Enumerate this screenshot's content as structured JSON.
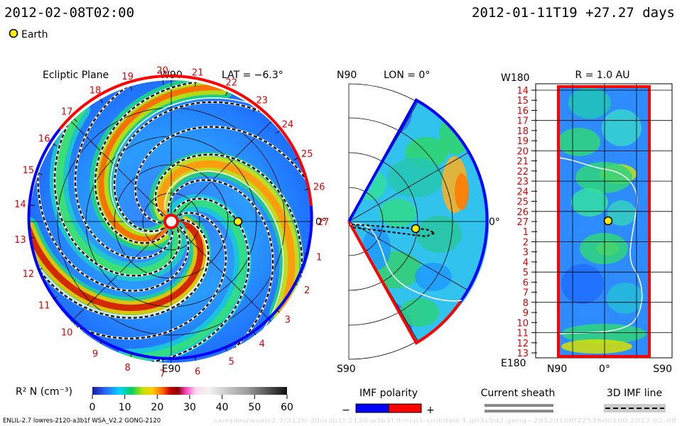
{
  "header": {
    "date_left": "2012-02-08T02:00",
    "date_right": "2012-01-11T19  +27.27 days",
    "earth_label": "Earth"
  },
  "colors": {
    "earth": "#ffee00",
    "polarity_negative": "#0000ff",
    "polarity_positive": "#ff0000",
    "current_sheath": "#8a8a8a",
    "imf_line": "#000000",
    "sun": "#ff0000",
    "tick_labels": "#dd0000"
  },
  "chart_data": [
    {
      "type": "heatmap",
      "title": "Ecliptic Plane",
      "top_label": "W90",
      "bottom_label": "E90",
      "right_label": "0°",
      "lat_label": "LAT = −6.3°",
      "carrington_ticks": [
        "1",
        "2",
        "3",
        "4",
        "5",
        "6",
        "7",
        "8",
        "9",
        "10",
        "11",
        "12",
        "13",
        "14",
        "15",
        "16",
        "17",
        "18",
        "19",
        "20",
        "21",
        "22",
        "23",
        "24",
        "25",
        "26",
        "27"
      ],
      "earth_present": true
    },
    {
      "type": "heatmap",
      "title": "LON = 0°",
      "top_label": "N90",
      "bottom_label": "S90",
      "right_label": "0°",
      "earth_present": true
    },
    {
      "type": "heatmap",
      "title": "R = 1.0 AU",
      "top_left_label": "W180",
      "bottom_left_label": "E180",
      "x_tick_labels": [
        "N90",
        "0°",
        "S90"
      ],
      "y_tick_labels": [
        "14",
        "15",
        "16",
        "17",
        "18",
        "19",
        "20",
        "21",
        "22",
        "23",
        "24",
        "25",
        "26",
        "27",
        "1",
        "2",
        "3",
        "4",
        "5",
        "6",
        "7",
        "8",
        "9",
        "10",
        "11",
        "12",
        "13"
      ],
      "earth_present": true
    }
  ],
  "colorbar": {
    "label": "R² N (cm⁻³)",
    "ticks": [
      "0",
      "10",
      "20",
      "30",
      "40",
      "50",
      "60"
    ],
    "range": [
      0,
      60
    ]
  },
  "legends": {
    "imf_polarity": {
      "title": "IMF polarity",
      "minus": "−",
      "plus": "+"
    },
    "current_sheath": {
      "title": "Current sheath"
    },
    "imf_line": {
      "title": "3D IMF line"
    }
  },
  "footer": {
    "left": "ENLIL-2.7 lowres-2120-a3b1f WSA_V2.2 GONG-2120",
    "right": "samples/wsatr2.7/2120-30/a3b1f-2120-a3b1f.8-hcp1-smlnted-1.g03s5d2.gong~2012d108f22536d0100      2012-02-08"
  }
}
